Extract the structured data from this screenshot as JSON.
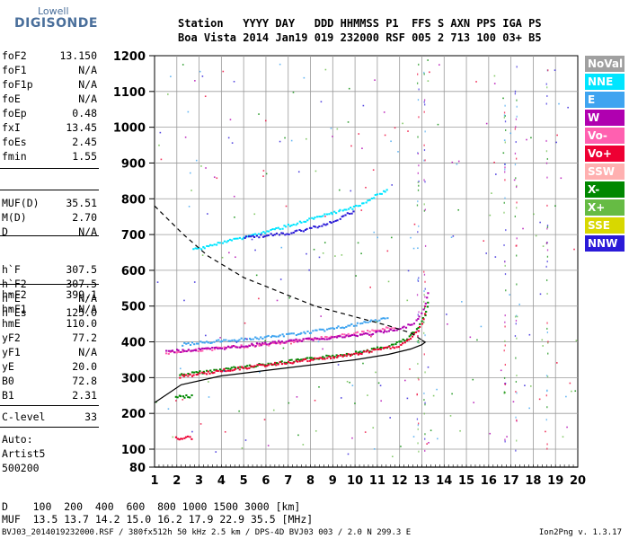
{
  "logo": {
    "line1": "Lowell",
    "line2": "DIGISONDE"
  },
  "header": {
    "row1": "Station   YYYY DAY   DDD HHMMSS P1  FFS S AXN PPS IGA PS",
    "row2": "Boa Vista 2014 Jan19 019 232000 RSF 005 2 713 100 03+ B5"
  },
  "params_group1": [
    {
      "name": "foF2",
      "value": "13.150"
    },
    {
      "name": "foF1",
      "value": "N/A"
    },
    {
      "name": "foF1p",
      "value": "N/A"
    },
    {
      "name": "foE",
      "value": "N/A"
    },
    {
      "name": "foEp",
      "value": "0.48"
    },
    {
      "name": "fxI",
      "value": "13.45"
    },
    {
      "name": "foEs",
      "value": "2.45"
    },
    {
      "name": "fmin",
      "value": "1.55"
    }
  ],
  "params_group2": [
    {
      "name": "MUF(D)",
      "value": "35.51"
    },
    {
      "name": "M(D)",
      "value": "2.70"
    },
    {
      "name": "D",
      "value": "N/A"
    }
  ],
  "params_group3": [
    {
      "name": "h`F",
      "value": "307.5"
    },
    {
      "name": "h`F2",
      "value": "307.5"
    },
    {
      "name": "h`E",
      "value": "N/A"
    },
    {
      "name": "h`Es",
      "value": "125.0"
    }
  ],
  "params_group4": [
    {
      "name": "hmF2",
      "value": "399.1"
    },
    {
      "name": "hmF1",
      "value": "N/A"
    },
    {
      "name": "hmE",
      "value": "110.0"
    },
    {
      "name": "yF2",
      "value": "77.2"
    },
    {
      "name": "yF1",
      "value": "N/A"
    },
    {
      "name": "yE",
      "value": "20.0"
    },
    {
      "name": "B0",
      "value": "72.8"
    },
    {
      "name": "B1",
      "value": "2.31"
    }
  ],
  "params_group5": [
    {
      "name": "C-level",
      "value": "33"
    }
  ],
  "auto": {
    "line1": "Auto:",
    "line2": "Artist5",
    "line3": "500200"
  },
  "muf_table": {
    "row1": "D    100  200  400  600  800 1000 1500 3000 [km]",
    "row2": "MUF  13.5 13.7 14.2 15.0 16.2 17.9 22.9 35.5 [MHz]"
  },
  "footer": {
    "file": "BVJ03_2014019232000.RSF / 380fx512h 50 kHz 2.5 km / DPS-4D BVJ03 003 / 2.0 N 299.3 E",
    "version": "Ion2Png v. 1.3.17"
  },
  "legend": [
    {
      "label": "NoVal",
      "color": "#a0a0a0"
    },
    {
      "label": "NNE",
      "color": "#00e5ff"
    },
    {
      "label": "E",
      "color": "#3fa4f0"
    },
    {
      "label": "W",
      "color": "#b000b0"
    },
    {
      "label": "Vo-",
      "color": "#ff60b0"
    },
    {
      "label": "Vo+",
      "color": "#ee0033"
    },
    {
      "label": "SSW",
      "color": "#ffb0b0"
    },
    {
      "label": "X-",
      "color": "#008800"
    },
    {
      "label": "X+",
      "color": "#66bb44"
    },
    {
      "label": "SSE",
      "color": "#d8d800"
    },
    {
      "label": "NNW",
      "color": "#2a1ad8"
    }
  ],
  "chart_data": {
    "type": "scatter",
    "xlabel": "",
    "ylabel": "",
    "xlim": [
      1,
      20
    ],
    "ylim": [
      80,
      1200
    ],
    "x_ticks": [
      1,
      2,
      3,
      4,
      5,
      6,
      7,
      8,
      9,
      10,
      11,
      12,
      13,
      14,
      15,
      16,
      17,
      18,
      19,
      20
    ],
    "y_ticks": [
      80,
      100,
      200,
      300,
      400,
      500,
      600,
      700,
      800,
      900,
      1000,
      1100,
      1200
    ],
    "grid": true,
    "traces": [
      {
        "name": "X- trace",
        "color": "#008800",
        "points": [
          [
            2.1,
            310
          ],
          [
            4,
            325
          ],
          [
            6,
            340
          ],
          [
            8,
            355
          ],
          [
            10,
            372
          ],
          [
            11.5,
            390
          ],
          [
            12.3,
            410
          ],
          [
            12.8,
            440
          ],
          [
            13.1,
            480
          ],
          [
            13.3,
            520
          ]
        ]
      },
      {
        "name": "Vo- trace",
        "color": "#ff60b0",
        "points": [
          [
            1.5,
            372
          ],
          [
            4,
            385
          ],
          [
            6,
            395
          ],
          [
            8,
            410
          ],
          [
            10,
            425
          ],
          [
            11,
            435
          ],
          [
            11.8,
            445
          ]
        ]
      },
      {
        "name": "W trace",
        "color": "#b000b0",
        "points": [
          [
            1.5,
            375
          ],
          [
            4,
            385
          ],
          [
            6,
            398
          ],
          [
            8,
            410
          ],
          [
            10,
            420
          ],
          [
            12,
            437
          ],
          [
            12.7,
            460
          ],
          [
            13.1,
            500
          ],
          [
            13.3,
            550
          ]
        ]
      },
      {
        "name": "Vo+ trace",
        "color": "#ee0033",
        "points": [
          [
            2.1,
            305
          ],
          [
            4,
            322
          ],
          [
            6,
            338
          ],
          [
            8,
            352
          ],
          [
            10,
            368
          ],
          [
            12,
            392
          ],
          [
            12.8,
            430
          ],
          [
            13.2,
            490
          ]
        ]
      },
      {
        "name": "E trace",
        "color": "#3fa4f0",
        "points": [
          [
            2.2,
            395
          ],
          [
            4,
            405
          ],
          [
            6,
            415
          ],
          [
            8,
            430
          ],
          [
            10,
            450
          ],
          [
            11.5,
            470
          ]
        ]
      },
      {
        "name": "NNE trace",
        "color": "#00e5ff",
        "points": [
          [
            2.7,
            660
          ],
          [
            4,
            680
          ],
          [
            6,
            710
          ],
          [
            8,
            745
          ],
          [
            10,
            780
          ],
          [
            11.5,
            830
          ]
        ]
      },
      {
        "name": "NNW trace",
        "color": "#2a1ad8",
        "points": [
          [
            5,
            695
          ],
          [
            6,
            700
          ],
          [
            7,
            705
          ],
          [
            8,
            720
          ],
          [
            9,
            740
          ],
          [
            10,
            770
          ]
        ]
      },
      {
        "name": "Vo+ low-frequency E trace",
        "color": "#ee0033",
        "points": [
          [
            1.9,
            132
          ],
          [
            2.3,
            135
          ],
          [
            2.7,
            134
          ]
        ]
      },
      {
        "name": "X- low-frequency E trace",
        "color": "#008800",
        "points": [
          [
            1.9,
            248
          ],
          [
            2.4,
            250
          ],
          [
            2.7,
            250
          ]
        ]
      }
    ],
    "profile_solid": [
      [
        1,
        230
      ],
      [
        2.2,
        280
      ],
      [
        4,
        305
      ],
      [
        6,
        320
      ],
      [
        8,
        335
      ],
      [
        10,
        350
      ],
      [
        11.5,
        365
      ],
      [
        12.5,
        380
      ],
      [
        13,
        392
      ],
      [
        13.15,
        399
      ],
      [
        13,
        405
      ]
    ],
    "profile_dashed": [
      [
        1,
        780
      ],
      [
        2.3,
        700
      ],
      [
        3.4,
        640
      ],
      [
        5,
        580
      ],
      [
        6.8,
        535
      ],
      [
        8.2,
        500
      ],
      [
        10,
        470
      ],
      [
        11.5,
        445
      ],
      [
        12.5,
        425
      ],
      [
        13.15,
        399
      ]
    ]
  }
}
